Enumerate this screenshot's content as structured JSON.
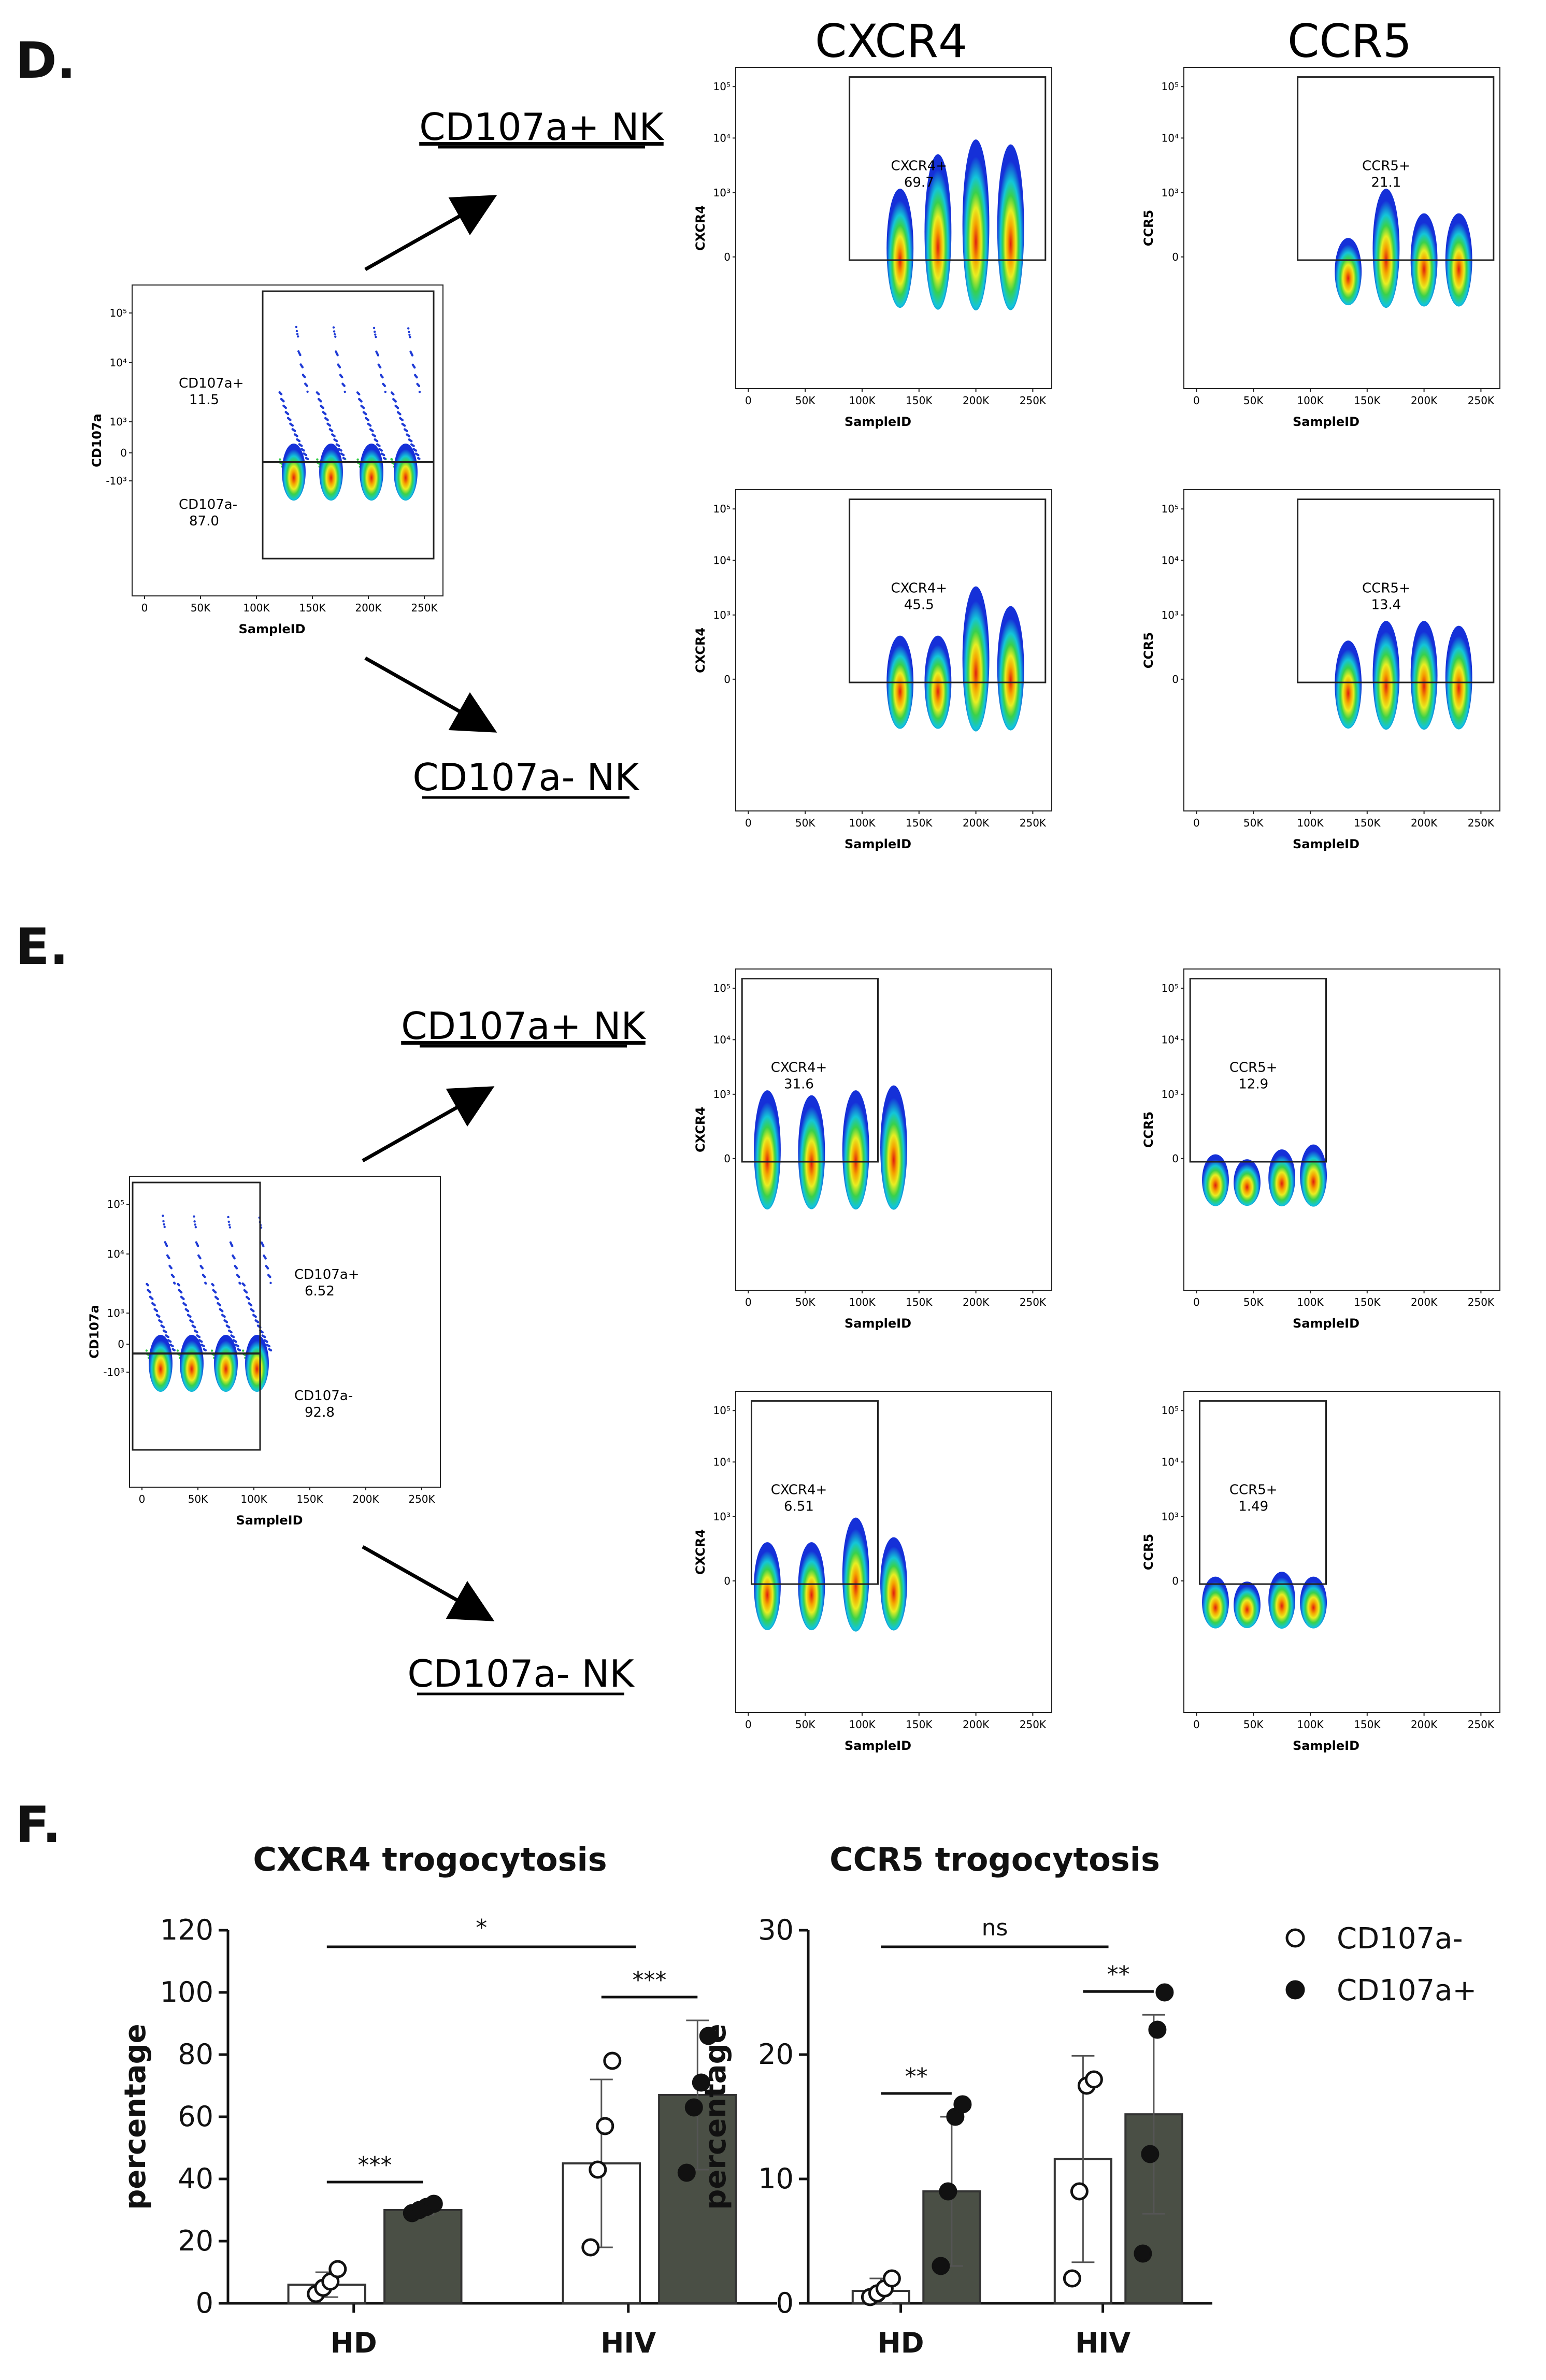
{
  "panels": [
    {
      "letter": "D.",
      "columns": [
        "CXCR4",
        "CCR5"
      ],
      "source_plot": {
        "y_label": "CD107a",
        "x_label": "SampleID",
        "x_ticks": [
          "0",
          "50K",
          "100K",
          "150K",
          "200K",
          "250K"
        ],
        "y_ticks": [
          "10⁵",
          "10⁴",
          "10³",
          "0",
          "-10³"
        ],
        "gate_pos": {
          "name": "CD107a+",
          "value": "11.5"
        },
        "gate_neg": {
          "name": "CD107a-",
          "value": "87.0"
        }
      },
      "arrow_top": "CD107a+ NK",
      "arrow_bottom": "CD107a- NK",
      "targets": [
        {
          "y_label": "CXCR4",
          "x_label": "SampleID",
          "gate_name": "CXCR4+",
          "gate_value": "69.7"
        },
        {
          "y_label": "CCR5",
          "x_label": "SampleID",
          "gate_name": "CCR5+",
          "gate_value": "21.1"
        },
        {
          "y_label": "CXCR4",
          "x_label": "SampleID",
          "gate_name": "CXCR4+",
          "gate_value": "45.5"
        },
        {
          "y_label": "CCR5",
          "x_label": "SampleID",
          "gate_name": "CCR5+",
          "gate_value": "13.4"
        }
      ]
    },
    {
      "letter": "E.",
      "source_plot": {
        "y_label": "CD107a",
        "x_label": "SampleID",
        "x_ticks": [
          "0",
          "50K",
          "100K",
          "150K",
          "200K",
          "250K"
        ],
        "y_ticks": [
          "10⁵",
          "10⁴",
          "10³",
          "0",
          "-10³"
        ],
        "gate_pos": {
          "name": "CD107a+",
          "value": "6.52"
        },
        "gate_neg": {
          "name": "CD107a-",
          "value": "92.8"
        }
      },
      "arrow_top": "CD107a+ NK",
      "arrow_bottom": "CD107a- NK",
      "targets": [
        {
          "y_label": "CXCR4",
          "x_label": "SampleID",
          "gate_name": "CXCR4+",
          "gate_value": "31.6"
        },
        {
          "y_label": "CCR5",
          "x_label": "SampleID",
          "gate_name": "CCR5+",
          "gate_value": "12.9"
        },
        {
          "y_label": "CXCR4",
          "x_label": "SampleID",
          "gate_name": "CXCR4+",
          "gate_value": "6.51"
        },
        {
          "y_label": "CCR5",
          "x_label": "SampleID",
          "gate_name": "CCR5+",
          "gate_value": "1.49"
        }
      ]
    }
  ],
  "flow_axes": {
    "x_ticks": [
      "0",
      "50K",
      "100K",
      "150K",
      "200K",
      "250K"
    ],
    "y_ticks": [
      "10⁵",
      "10⁴",
      "10³",
      "0"
    ]
  },
  "panel_f_letter": "F.",
  "legend": [
    {
      "label": "CD107a-",
      "marker": "open-circle"
    },
    {
      "label": "CD107a+",
      "marker": "filled-circle"
    }
  ],
  "colors": {
    "open_bar": "#ffffff",
    "filled_bar": "#4a4f45",
    "text": "#111111"
  },
  "chart_data": [
    {
      "type": "bar",
      "title": "CXCR4 trogocytosis",
      "ylabel": "percentage",
      "categories": [
        "HD",
        "HIV"
      ],
      "ylim": [
        0,
        120
      ],
      "yticks": [
        0,
        20,
        40,
        60,
        80,
        100,
        120
      ],
      "series": [
        {
          "name": "CD107a-",
          "values": [
            6,
            45
          ],
          "sd": [
            4,
            27
          ],
          "points": [
            [
              3,
              5,
              7,
              11
            ],
            [
              18,
              43,
              57,
              78
            ]
          ]
        },
        {
          "name": "CD107a+",
          "values": [
            30,
            67
          ],
          "sd": [
            1.5,
            24
          ],
          "points": [
            [
              29,
              30,
              31,
              32
            ],
            [
              42,
              63,
              71,
              86
            ]
          ]
        }
      ],
      "significance": [
        {
          "label": "***",
          "between": "HD CD107a- vs HD CD107a+"
        },
        {
          "label": "***",
          "between": "HIV CD107a- vs HIV CD107a+"
        },
        {
          "label": "*",
          "between": "HD vs HIV"
        }
      ]
    },
    {
      "type": "bar",
      "title": "CCR5 trogocytosis",
      "ylabel": "percentage",
      "categories": [
        "HD",
        "HIV"
      ],
      "ylim": [
        0,
        30
      ],
      "yticks": [
        0,
        10,
        20,
        30
      ],
      "series": [
        {
          "name": "CD107a-",
          "values": [
            1,
            11.6
          ],
          "sd": [
            1,
            8.3
          ],
          "points": [
            [
              0.5,
              0.8,
              1.2,
              2
            ],
            [
              2,
              9,
              17.5,
              18
            ]
          ]
        },
        {
          "name": "CD107a+",
          "values": [
            9,
            15.2
          ],
          "sd": [
            6,
            8
          ],
          "points": [
            [
              3,
              9,
              15,
              16
            ],
            [
              4,
              12,
              22,
              25
            ]
          ]
        }
      ],
      "significance": [
        {
          "label": "**",
          "between": "HD CD107a- vs HD CD107a+"
        },
        {
          "label": "**",
          "between": "HIV CD107a- vs HIV CD107a+"
        },
        {
          "label": "ns",
          "between": "HD vs HIV"
        }
      ]
    }
  ]
}
